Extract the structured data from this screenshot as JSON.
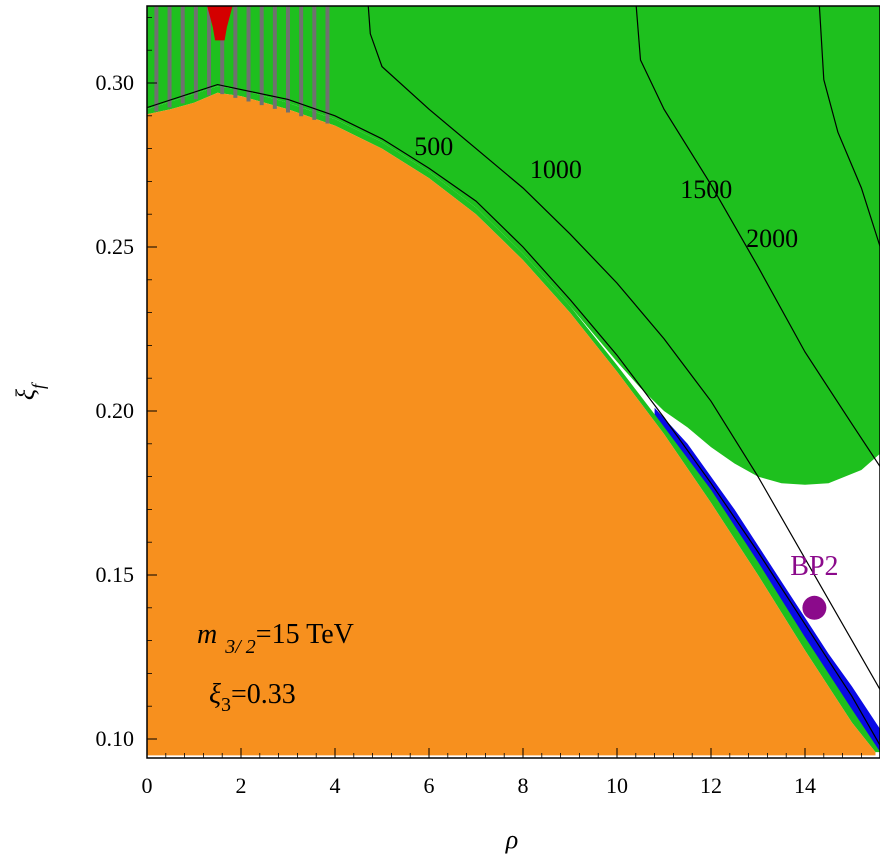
{
  "chart_data": {
    "type": "area",
    "xlabel": "ρ",
    "ylabel": "ξ_f",
    "xlim": [
      0,
      15.6
    ],
    "ylim": [
      0.095,
      0.325
    ],
    "x_ticks": [
      "0",
      "2",
      "4",
      "6",
      "8",
      "10",
      "12",
      "14"
    ],
    "y_ticks": [
      "0.10",
      "0.15",
      "0.20",
      "0.25",
      "0.30"
    ],
    "regions": [
      {
        "name": "orange",
        "color": "#F7901E"
      },
      {
        "name": "green",
        "color": "#1EC01E"
      },
      {
        "name": "blue",
        "color": "#0A0AE6"
      },
      {
        "name": "red",
        "color": "#D40000"
      },
      {
        "name": "gray-stripes",
        "color": "#707070"
      }
    ],
    "contours": [
      {
        "label": "500",
        "label_pos": [
          6.1,
          0.278
        ]
      },
      {
        "label": "1000",
        "label_pos": [
          8.7,
          0.271
        ]
      },
      {
        "label": "1500",
        "label_pos": [
          11.9,
          0.265
        ]
      },
      {
        "label": "2000",
        "label_pos": [
          13.3,
          0.25
        ]
      }
    ],
    "benchmark": {
      "label": "BP2",
      "x": 14.2,
      "y": 0.14,
      "color": "#8B0A8B"
    },
    "annotations": {
      "mass_m": "m",
      "mass_sub": "3/ 2",
      "mass_value": "=15  TeV",
      "xi3_symbol": "ξ",
      "xi3_sub": "3",
      "xi3_value": "=0.33"
    }
  }
}
